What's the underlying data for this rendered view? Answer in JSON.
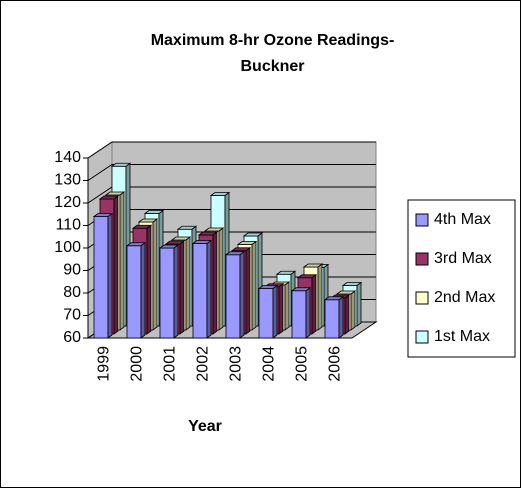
{
  "chart_data": {
    "type": "bar3d",
    "title": "Maximum 8-hr Ozone Readings-Buckner",
    "x_label": "Year",
    "categories": [
      "1999",
      "2000",
      "2001",
      "2002",
      "2003",
      "2004",
      "2005",
      "2006"
    ],
    "series": [
      {
        "name": "4th Max",
        "color": "#9999ff",
        "values": [
          114,
          101,
          100,
          102,
          97,
          82,
          81,
          77
        ]
      },
      {
        "name": "3rd Max",
        "color": "#993366",
        "values": [
          120,
          107,
          100,
          104,
          97,
          81,
          85,
          76
        ]
      },
      {
        "name": "2nd Max",
        "color": "#ffffcc",
        "values": [
          120,
          108,
          100,
          104,
          98,
          80,
          88,
          76
        ]
      },
      {
        "name": "1st Max",
        "color": "#ccffff",
        "values": [
          131,
          110,
          103,
          118,
          100,
          83,
          86,
          78
        ]
      }
    ],
    "ylim": [
      60,
      140
    ],
    "yticks": [
      60,
      70,
      80,
      90,
      100,
      110,
      120,
      130,
      140
    ],
    "grid": true,
    "legend": "right"
  }
}
